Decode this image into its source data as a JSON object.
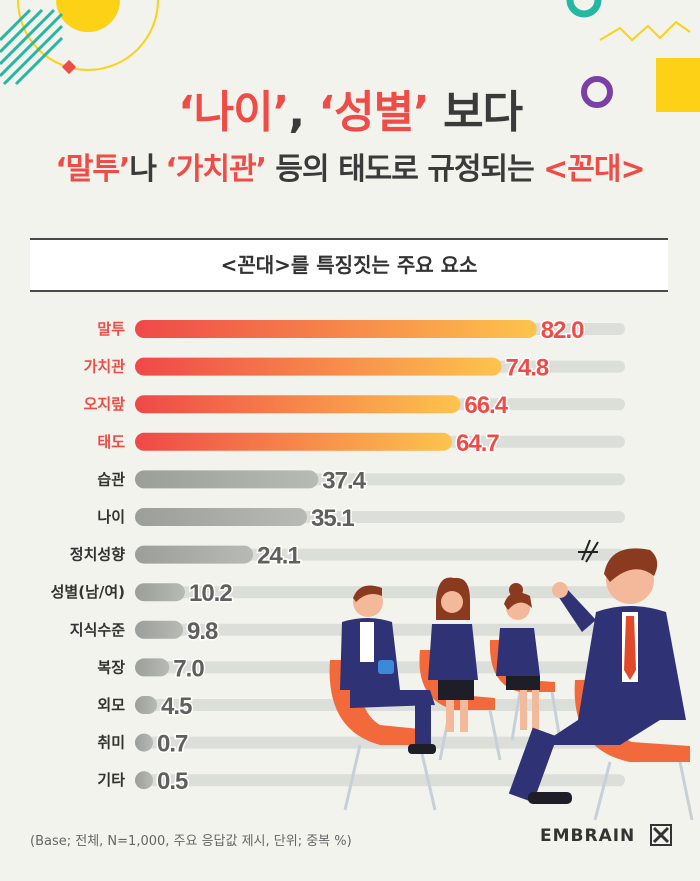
{
  "header": {
    "title_line1_parts": [
      "‘나이’",
      ", ",
      "‘성별’",
      " 보다"
    ],
    "title_line2_parts": [
      "‘말투’",
      "나 ",
      "‘가치관’",
      " 등의 태도로 규정되는 ",
      "<꼰대>"
    ]
  },
  "subtitle": "<꼰대>를 특징짓는 주요 요소",
  "chart_data": {
    "type": "bar",
    "orientation": "horizontal",
    "title": "<꼰대>를 특징짓는 주요 요소",
    "categories": [
      "말투",
      "가치관",
      "오지랖",
      "태도",
      "습관",
      "나이",
      "정치성향",
      "성별(남/여)",
      "지식수준",
      "복장",
      "외모",
      "취미",
      "기타"
    ],
    "values": [
      82.0,
      74.8,
      66.4,
      64.7,
      37.4,
      35.1,
      24.1,
      10.2,
      9.8,
      7.0,
      4.5,
      0.7,
      0.5
    ],
    "value_labels": [
      "82.0",
      "74.8",
      "66.4",
      "64.7",
      "37.4",
      "35.1",
      "24.1",
      "10.2",
      "9.8",
      "7.0",
      "4.5",
      "0.7",
      "0.5"
    ],
    "highlighted_count": 4,
    "xlim": [
      0,
      100
    ],
    "colors": {
      "highlight_start": "#ef4848",
      "highlight_end": "#fdc44d",
      "highlight_label": "#ef4b47",
      "normal_bar": "#a8aaa6",
      "normal_label": "#5f605e",
      "track": "#dcdeda",
      "highlight_cat": "#ef4b47",
      "normal_cat": "#333333"
    }
  },
  "footnote": "(Base; 전체, N=1,000, 주요 응답값 제시, 단위; 중복 %)",
  "brand": "EMBRAIN"
}
